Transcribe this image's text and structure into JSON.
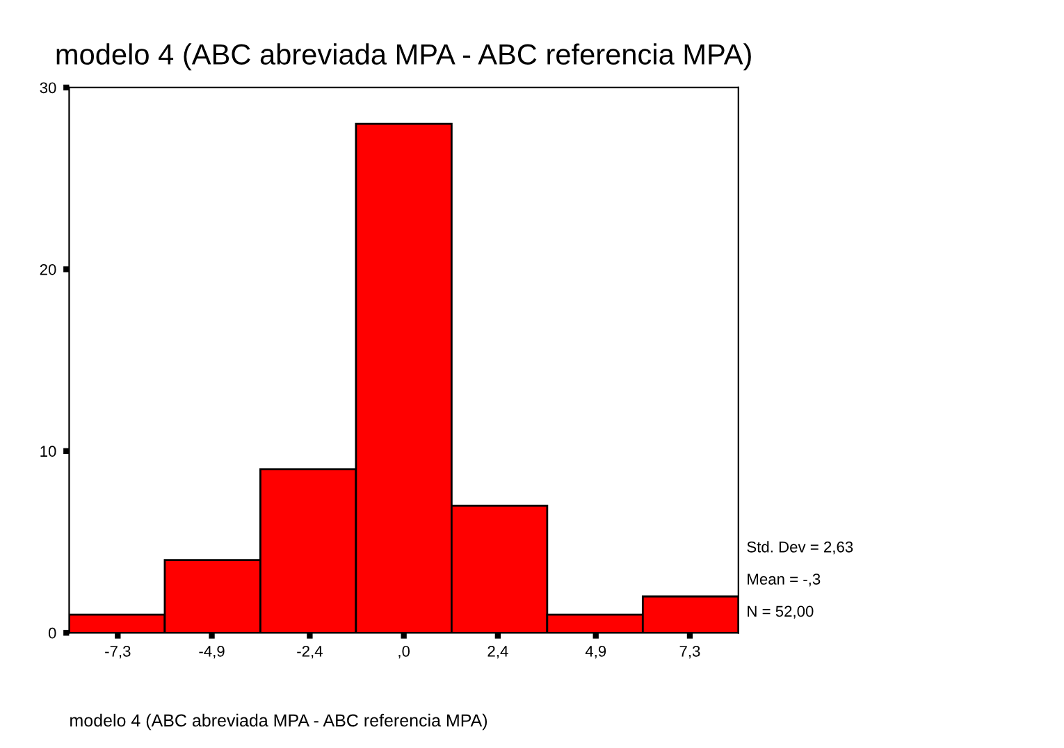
{
  "chart_data": {
    "type": "histogram",
    "title": "modelo 4 (ABC abreviada MPA - ABC referencia MPA)",
    "xlabel": "modelo 4 (ABC abreviada MPA - ABC referencia MPA)",
    "bins": [
      -8.54,
      -6.1,
      -3.66,
      -1.22,
      1.22,
      3.66,
      6.1,
      8.54
    ],
    "values": [
      1,
      4,
      9,
      28,
      7,
      1,
      2
    ],
    "color": "#ff0000",
    "xlim": [
      -8.54,
      8.54
    ],
    "xticks": [
      {
        "value": -7.3,
        "label": "-7,3"
      },
      {
        "value": -4.9,
        "label": "-4,9"
      },
      {
        "value": -2.4,
        "label": "-2,4"
      },
      {
        "value": 0,
        "label": ",0"
      },
      {
        "value": 2.4,
        "label": "2,4"
      },
      {
        "value": 4.9,
        "label": "4,9"
      },
      {
        "value": 7.3,
        "label": "7,3"
      }
    ],
    "ylim": [
      0,
      30
    ],
    "yticks": [
      0,
      10,
      20,
      30
    ],
    "grid": false,
    "annotations": [
      "Std. Dev = 2,63",
      "Mean = -,3",
      "N = 52,00"
    ]
  }
}
